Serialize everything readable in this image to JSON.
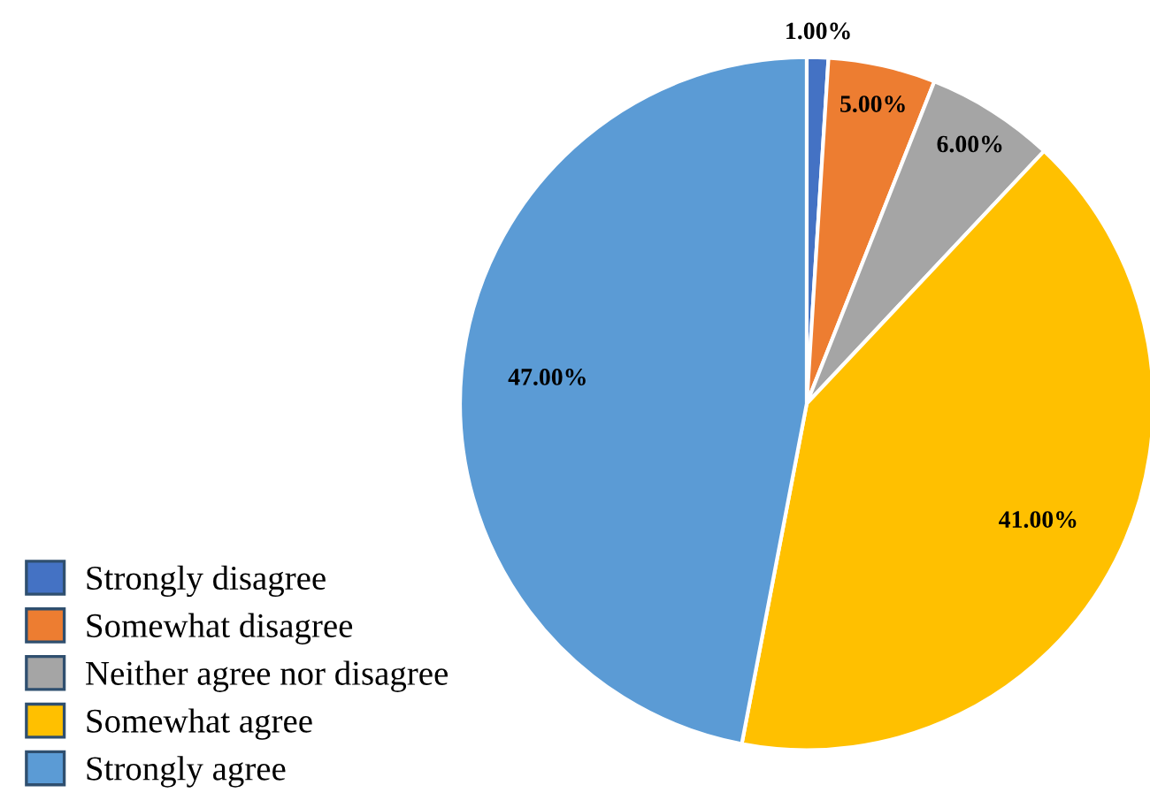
{
  "chart_data": {
    "type": "pie",
    "categories": [
      "Strongly disagree",
      "Somewhat disagree",
      "Neither agree nor disagree",
      "Somewhat agree",
      "Strongly agree"
    ],
    "values": [
      1,
      5,
      6,
      41,
      47
    ],
    "colors": [
      "#4472c4",
      "#ed7d31",
      "#a5a5a5",
      "#ffc000",
      "#5b9bd5"
    ],
    "value_labels": [
      "1.00%",
      "5.00%",
      "6.00%",
      "41.00%",
      "47.00%"
    ],
    "legend": "bottom left"
  }
}
